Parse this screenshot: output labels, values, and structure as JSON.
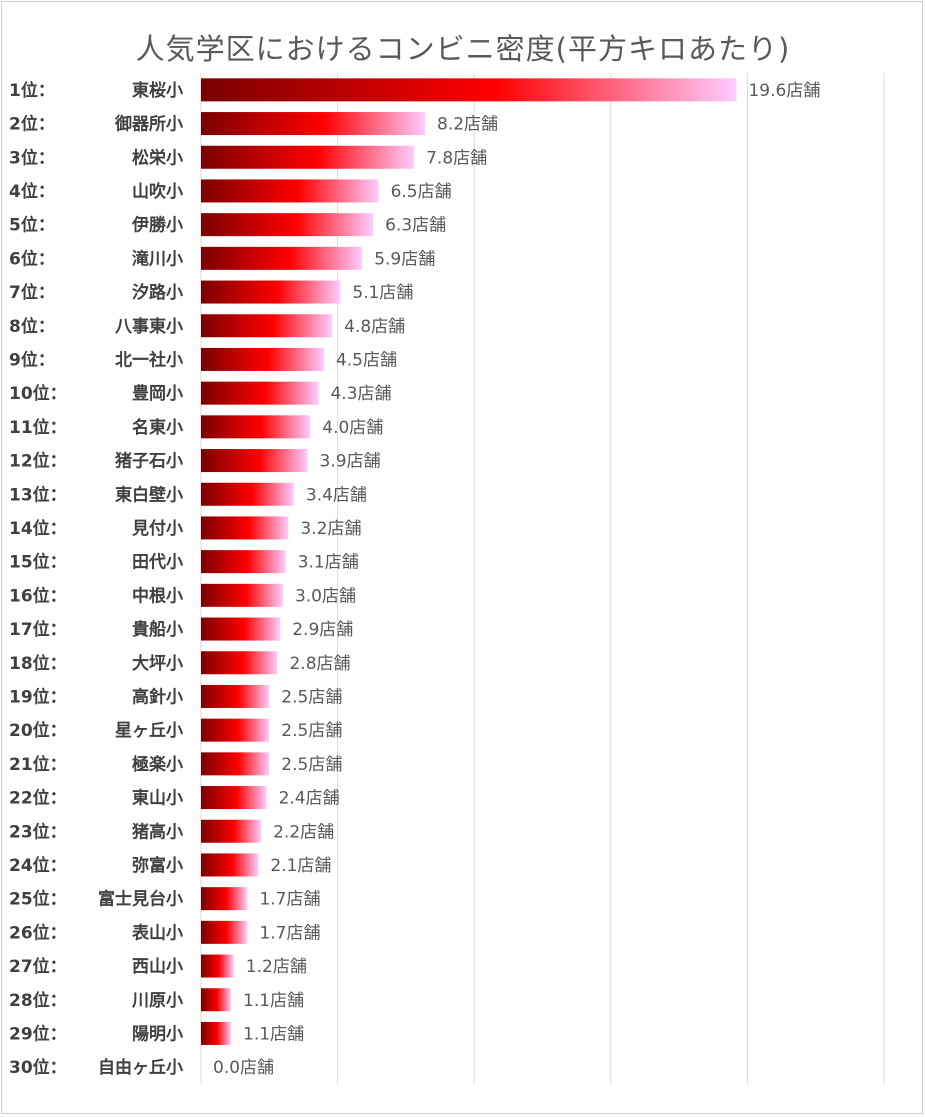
{
  "chart_data": {
    "type": "bar",
    "orientation": "horizontal",
    "title": "人気学区におけるコンビニ密度(平方キロあたり)",
    "value_suffix": "店舗",
    "xlim": [
      0,
      25
    ],
    "grid": true,
    "categories": [
      {
        "rank": "1位：",
        "school": "東桜小",
        "value": 19.6
      },
      {
        "rank": "2位：",
        "school": "御器所小",
        "value": 8.2
      },
      {
        "rank": "3位：",
        "school": "松栄小",
        "value": 7.8
      },
      {
        "rank": "4位：",
        "school": "山吹小",
        "value": 6.5
      },
      {
        "rank": "5位：",
        "school": "伊勝小",
        "value": 6.3
      },
      {
        "rank": "6位：",
        "school": "滝川小",
        "value": 5.9
      },
      {
        "rank": "7位：",
        "school": "汐路小",
        "value": 5.1
      },
      {
        "rank": "8位：",
        "school": "八事東小",
        "value": 4.8
      },
      {
        "rank": "9位：",
        "school": "北一社小",
        "value": 4.5
      },
      {
        "rank": "10位：",
        "school": "豊岡小",
        "value": 4.3
      },
      {
        "rank": "11位：",
        "school": "名東小",
        "value": 4.0
      },
      {
        "rank": "12位：",
        "school": "猪子石小",
        "value": 3.9
      },
      {
        "rank": "13位：",
        "school": "東白壁小",
        "value": 3.4
      },
      {
        "rank": "14位：",
        "school": "見付小",
        "value": 3.2
      },
      {
        "rank": "15位：",
        "school": "田代小",
        "value": 3.1
      },
      {
        "rank": "16位：",
        "school": "中根小",
        "value": 3.0
      },
      {
        "rank": "17位：",
        "school": "貴船小",
        "value": 2.9
      },
      {
        "rank": "18位：",
        "school": "大坪小",
        "value": 2.8
      },
      {
        "rank": "19位：",
        "school": "高針小",
        "value": 2.5
      },
      {
        "rank": "20位：",
        "school": "星ヶ丘小",
        "value": 2.5
      },
      {
        "rank": "21位：",
        "school": "極楽小",
        "value": 2.5
      },
      {
        "rank": "22位：",
        "school": "東山小",
        "value": 2.4
      },
      {
        "rank": "23位：",
        "school": "猪高小",
        "value": 2.2
      },
      {
        "rank": "24位：",
        "school": "弥富小",
        "value": 2.1
      },
      {
        "rank": "25位：",
        "school": "富士見台小",
        "value": 1.7
      },
      {
        "rank": "26位：",
        "school": "表山小",
        "value": 1.7
      },
      {
        "rank": "27位：",
        "school": "西山小",
        "value": 1.2
      },
      {
        "rank": "28位：",
        "school": "川原小",
        "value": 1.1
      },
      {
        "rank": "29位：",
        "school": "陽明小",
        "value": 1.1
      },
      {
        "rank": "30位：",
        "school": "自由ヶ丘小",
        "value": 0.0
      }
    ],
    "colors": {
      "bar_start": "#7a0000",
      "bar_mid": "#ff0000",
      "bar_end": "#ffccff",
      "grid": "#d9d9d9"
    }
  }
}
